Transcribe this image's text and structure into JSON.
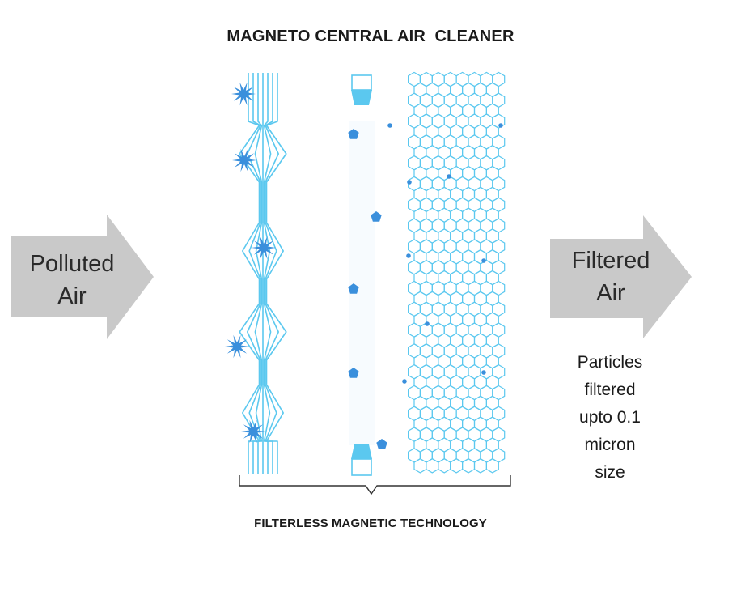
{
  "title": "MAGNETO CENTRAL AIR  CLEANER",
  "input_label": {
    "line1": "Polluted",
    "line2": "Air"
  },
  "output_label": {
    "line1": "Filtered",
    "line2": "Air"
  },
  "note_lines": [
    "Particles",
    "filtered",
    "upto 0.1",
    "micron",
    "size"
  ],
  "bracket_caption": "FILTERLESS MAGNETIC TECHNOLOGY",
  "colors": {
    "arrow": "#c9c9c9",
    "filter_line": "#5bc8ef",
    "particle": "#3a8fdc",
    "honeycomb": "#5bc8ef",
    "text": "#1a1a1a"
  }
}
